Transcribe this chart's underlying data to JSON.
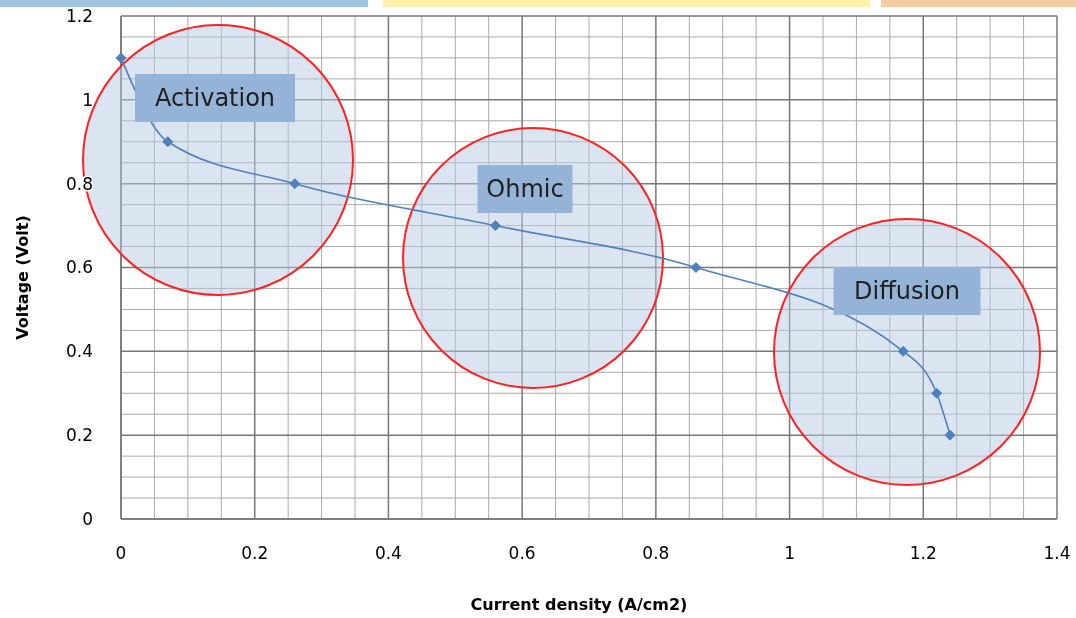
{
  "chart_data": {
    "type": "line",
    "xlabel": "Current density (A/cm2)",
    "ylabel": "Voltage (Volt)",
    "x": [
      0,
      0.07,
      0.26,
      0.56,
      0.86,
      1.17,
      1.22,
      1.24
    ],
    "series": [
      {
        "color": "#4f81bd",
        "values": [
          1.1,
          0.9,
          0.8,
          0.7,
          0.6,
          0.4,
          0.3,
          0.2
        ]
      }
    ],
    "xlim": [
      0,
      1.4
    ],
    "xticks": [
      0,
      0.2,
      0.4,
      0.6,
      0.8,
      1,
      1.2,
      1.4
    ],
    "ylim": [
      0,
      1.2
    ],
    "yticks": [
      0,
      0.2,
      0.4,
      0.6,
      0.8,
      1,
      1.2
    ],
    "grid": true,
    "marker": "diamond",
    "annotations": [
      "Activation",
      "Ohmic",
      "Diffusion"
    ]
  }
}
